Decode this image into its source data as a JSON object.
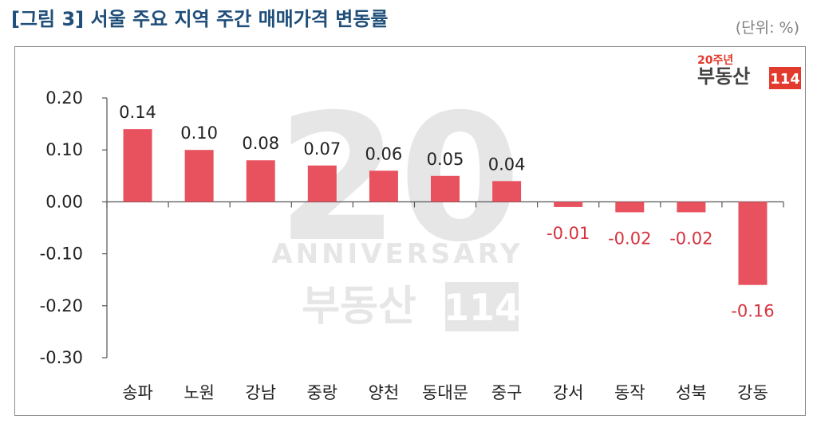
{
  "header": {
    "title": "[그림 3] 서울 주요 지역 주간 매매가격 변동률",
    "unit": "(단위: %)"
  },
  "logo": {
    "top": "20주년",
    "name": "부동산",
    "number": "114"
  },
  "watermark": {
    "number": "20",
    "word": "ANNIVERSARY",
    "name": "부동산",
    "number2": "114"
  },
  "colors": {
    "bar": "#e8525f",
    "negative_label": "#d6333e",
    "title": "#1f4e79",
    "accent": "#e23b2e"
  },
  "chart_data": {
    "type": "bar",
    "title": "",
    "xlabel": "",
    "ylabel": "",
    "categories": [
      "송파",
      "노원",
      "강남",
      "중랑",
      "양천",
      "동대문",
      "중구",
      "강서",
      "동작",
      "성북",
      "강동"
    ],
    "values": [
      0.14,
      0.1,
      0.08,
      0.07,
      0.06,
      0.05,
      0.04,
      -0.01,
      -0.02,
      -0.02,
      -0.16
    ],
    "value_labels": [
      "0.14",
      "0.10",
      "0.08",
      "0.07",
      "0.06",
      "0.05",
      "0.04",
      "-0.01",
      "-0.02",
      "-0.02",
      "-0.16"
    ],
    "yticks": [
      0.2,
      0.1,
      0.0,
      -0.1,
      -0.2,
      -0.3
    ],
    "ytick_labels": [
      "0.20",
      "0.10",
      "0.00",
      "-0.10",
      "-0.20",
      "-0.30"
    ],
    "ylim": [
      -0.3,
      0.2
    ],
    "grid": false,
    "legend": "none"
  }
}
